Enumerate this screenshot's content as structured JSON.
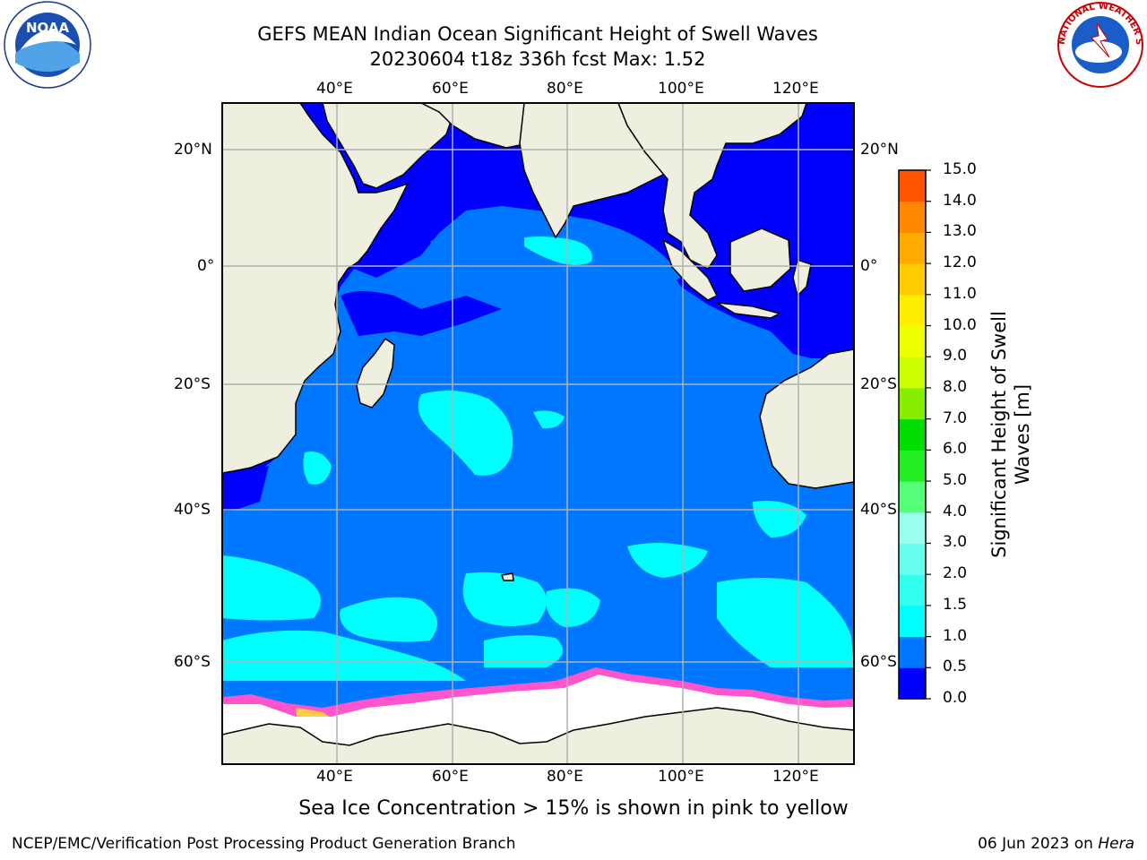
{
  "title": {
    "line1": "GEFS MEAN Indian Ocean Significant Height of Swell Waves",
    "line2": "20230604 t18z 336h fcst   Max: 1.52"
  },
  "map": {
    "lon_labels": [
      "40°E",
      "60°E",
      "80°E",
      "100°E",
      "120°E"
    ],
    "lat_labels": [
      "20°N",
      "0°",
      "20°S",
      "40°S",
      "60°S"
    ],
    "colors": {
      "land": "#efefe0",
      "ocean_dark": "#0000ff",
      "ocean_mid": "#0077ff",
      "ocean_light": "#00ffff",
      "ice": "#ffffff",
      "ice_edge": "#ff55cc",
      "ice_yellow": "#ffcc44",
      "gridline": "#b0b0b0"
    },
    "note": "Sea Ice Concentration > 15% is shown in pink to yellow"
  },
  "colorbar": {
    "title": "Significant Height of Swell Waves [m]",
    "tick_labels": [
      "0.0",
      "0.5",
      "1.0",
      "1.5",
      "2.0",
      "3.0",
      "4.0",
      "5.0",
      "6.0",
      "7.0",
      "8.0",
      "9.0",
      "10.0",
      "11.0",
      "12.0",
      "13.0",
      "14.0",
      "15.0"
    ],
    "colors": [
      "#0000ff",
      "#0077ff",
      "#00ffff",
      "#33ffee",
      "#66ffee",
      "#99ffee",
      "#55ff77",
      "#22ee22",
      "#00dd00",
      "#88ee00",
      "#ccff00",
      "#eeff00",
      "#ffee00",
      "#ffcc00",
      "#ffaa00",
      "#ff8800",
      "#ff5500",
      "#ff2200",
      "#ff0000"
    ]
  },
  "footer": {
    "left": "NCEP/EMC/Verification Post Processing Product Generation Branch",
    "right_date": "06 Jun 2023 on ",
    "right_host": "Hera"
  },
  "logos": {
    "noaa_text": "NOAA",
    "nws_text": "NATIONAL WEATHER SERVICE"
  }
}
